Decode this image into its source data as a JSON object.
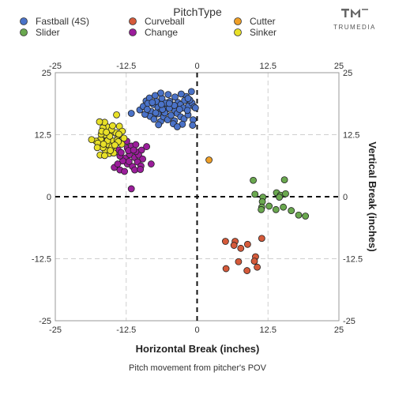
{
  "brand": {
    "name": "TRUMEDIA"
  },
  "chart_data": {
    "type": "scatter",
    "legend_title": "PitchType",
    "legend_position": "top",
    "xlabel": "Horizontal Break (inches)",
    "ylabel": "Vertical Break (inches)",
    "caption": "Pitch movement from pitcher's POV",
    "xlim": [
      -25,
      25
    ],
    "ylim": [
      -25,
      25
    ],
    "x_ticks": [
      -25,
      -12.5,
      0,
      12.5,
      25
    ],
    "y_ticks": [
      -25,
      -12.5,
      0,
      12.5,
      25
    ],
    "x_tick_labels": [
      "-25",
      "-12.5",
      "0",
      "12.5",
      "25"
    ],
    "y_tick_labels": [
      "-25",
      "-12.5",
      "0",
      "12.5",
      "25"
    ],
    "grid": true,
    "zero_lines": "dashed",
    "series": [
      {
        "name": "Fastball (4S)",
        "color": "#4a72c8",
        "points": [
          [
            -10.1,
            17.5
          ],
          [
            -9.5,
            18.2
          ],
          [
            -9.0,
            19.3
          ],
          [
            -8.4,
            19.9
          ],
          [
            -8.1,
            17.2
          ],
          [
            -7.7,
            18.6
          ],
          [
            -7.2,
            19.2
          ],
          [
            -6.9,
            18.0
          ],
          [
            -6.6,
            17.0
          ],
          [
            -6.2,
            19.8
          ],
          [
            -5.8,
            18.4
          ],
          [
            -5.3,
            17.7
          ],
          [
            -4.8,
            19.2
          ],
          [
            -4.4,
            18.1
          ],
          [
            -3.9,
            17.3
          ],
          [
            -3.4,
            19.0
          ],
          [
            -2.9,
            18.6
          ],
          [
            -2.4,
            17.9
          ],
          [
            -1.9,
            20.2
          ],
          [
            -1.5,
            18.3
          ],
          [
            -0.9,
            18.9
          ],
          [
            -0.5,
            18.1
          ],
          [
            -1.0,
            21.2
          ],
          [
            -1.3,
            19.5
          ],
          [
            -8.3,
            16.2
          ],
          [
            -7.6,
            15.6
          ],
          [
            -6.9,
            16.7
          ],
          [
            -6.4,
            15.2
          ],
          [
            -5.9,
            16.1
          ],
          [
            -5.2,
            15.5
          ],
          [
            -4.6,
            16.4
          ],
          [
            -4.0,
            15.3
          ],
          [
            -3.5,
            16.8
          ],
          [
            -2.9,
            16.1
          ],
          [
            -2.3,
            15.7
          ],
          [
            -1.6,
            16.5
          ],
          [
            -0.7,
            15.5
          ],
          [
            -7.4,
            20.4
          ],
          [
            -6.4,
            20.9
          ],
          [
            -5.1,
            20.6
          ],
          [
            -3.9,
            20.1
          ],
          [
            -2.8,
            20.7
          ],
          [
            -2.2,
            19.4
          ],
          [
            -9.2,
            16.6
          ],
          [
            -4.2,
            14.7
          ],
          [
            -6.8,
            14.5
          ],
          [
            -2.6,
            14.6
          ],
          [
            -1.7,
            17.4
          ],
          [
            -5.5,
            18.9
          ],
          [
            -8.7,
            18.8
          ],
          [
            -7.3,
            16.9
          ],
          [
            -4.9,
            17.8
          ],
          [
            -3.1,
            17.6
          ],
          [
            -5.7,
            16.9
          ],
          [
            -0.3,
            17.9
          ],
          [
            -6.1,
            17.6
          ],
          [
            -8.8,
            17.6
          ],
          [
            -4.0,
            18.4
          ],
          [
            -7.9,
            19.0
          ],
          [
            -11.6,
            16.8
          ],
          [
            -6.3,
            18.6
          ],
          [
            -1.6,
            19.8
          ],
          [
            -4.9,
            18.8
          ],
          [
            -3.5,
            14.1
          ],
          [
            -0.8,
            14.4
          ]
        ]
      },
      {
        "name": "Curveball",
        "color": "#d55a3a",
        "points": [
          [
            5.0,
            -9.0
          ],
          [
            6.7,
            -9.0
          ],
          [
            6.5,
            -9.8
          ],
          [
            7.7,
            -10.4
          ],
          [
            8.9,
            -9.6
          ],
          [
            11.4,
            -8.4
          ],
          [
            10.3,
            -12.1
          ],
          [
            7.3,
            -13.1
          ],
          [
            5.1,
            -14.5
          ],
          [
            8.8,
            -14.9
          ],
          [
            10.6,
            -14.2
          ],
          [
            10.1,
            -13.0
          ]
        ]
      },
      {
        "name": "Cutter",
        "color": "#ef9f27",
        "points": [
          [
            2.1,
            7.4
          ]
        ]
      },
      {
        "name": "Slider",
        "color": "#6aa84f",
        "points": [
          [
            9.9,
            3.3
          ],
          [
            15.4,
            3.4
          ],
          [
            10.2,
            0.5
          ],
          [
            14.0,
            0.8
          ],
          [
            14.7,
            0.3
          ],
          [
            15.6,
            0.6
          ],
          [
            14.5,
            -0.1
          ],
          [
            11.6,
            -0.1
          ],
          [
            11.5,
            -1.0
          ],
          [
            11.4,
            -2.1
          ],
          [
            12.7,
            -1.9
          ],
          [
            15.2,
            -2.1
          ],
          [
            13.9,
            -2.6
          ],
          [
            11.3,
            -2.6
          ],
          [
            16.6,
            -2.8
          ],
          [
            17.9,
            -3.7
          ],
          [
            19.1,
            -3.9
          ]
        ]
      },
      {
        "name": "Change",
        "color": "#9b1d9b",
        "points": [
          [
            -14.8,
            10.3
          ],
          [
            -13.9,
            9.4
          ],
          [
            -13.1,
            10.9
          ],
          [
            -12.3,
            9.8
          ],
          [
            -11.6,
            10.2
          ],
          [
            -10.8,
            10.5
          ],
          [
            -9.8,
            9.4
          ],
          [
            -8.9,
            10.1
          ],
          [
            -12.6,
            7.8
          ],
          [
            -11.9,
            8.5
          ],
          [
            -11.0,
            7.9
          ],
          [
            -10.3,
            8.4
          ],
          [
            -9.6,
            7.6
          ],
          [
            -12.3,
            6.6
          ],
          [
            -11.4,
            6.1
          ],
          [
            -10.5,
            7.0
          ],
          [
            -9.9,
            6.2
          ],
          [
            -13.1,
            7.2
          ],
          [
            -13.6,
            8.2
          ],
          [
            -14.6,
            5.9
          ],
          [
            -13.6,
            5.4
          ],
          [
            -12.8,
            5.1
          ],
          [
            -11.0,
            5.4
          ],
          [
            -10.0,
            5.5
          ],
          [
            -8.1,
            6.6
          ],
          [
            -11.6,
            1.6
          ],
          [
            -12.1,
            9.3
          ],
          [
            -14.0,
            6.6
          ],
          [
            -10.8,
            9.1
          ],
          [
            -12.0,
            7.1
          ],
          [
            -11.2,
            9.4
          ],
          [
            -13.4,
            8.9
          ],
          [
            -12.4,
            11.2
          ]
        ]
      },
      {
        "name": "Sinker",
        "color": "#e8e028",
        "points": [
          [
            -14.2,
            16.5
          ],
          [
            -13.7,
            14.2
          ],
          [
            -13.2,
            13.2
          ],
          [
            -14.0,
            12.3
          ],
          [
            -14.8,
            11.2
          ],
          [
            -15.2,
            12.8
          ],
          [
            -15.9,
            14.1
          ],
          [
            -16.2,
            12.5
          ],
          [
            -16.4,
            11.1
          ],
          [
            -16.9,
            10.3
          ],
          [
            -17.0,
            11.6
          ],
          [
            -17.8,
            11.2
          ],
          [
            -16.6,
            13.9
          ],
          [
            -16.3,
            15.0
          ],
          [
            -16.9,
            12.6
          ],
          [
            -17.5,
            10.8
          ],
          [
            -15.6,
            10.5
          ],
          [
            -14.8,
            9.7
          ],
          [
            -15.5,
            8.7
          ],
          [
            -16.2,
            9.4
          ],
          [
            -16.6,
            9.9
          ],
          [
            -17.1,
            8.4
          ],
          [
            -14.3,
            12.9
          ],
          [
            -15.1,
            13.5
          ],
          [
            -14.1,
            11.4
          ],
          [
            -15.8,
            11.3
          ],
          [
            -13.3,
            10.6
          ],
          [
            -12.9,
            11.8
          ],
          [
            -14.7,
            8.8
          ],
          [
            -16.8,
            13.2
          ],
          [
            -15.0,
            10.1
          ],
          [
            -13.9,
            11.1
          ],
          [
            -16.3,
            8.3
          ],
          [
            -18.6,
            11.5
          ],
          [
            -17.6,
            9.9
          ],
          [
            -15.4,
            12.2
          ],
          [
            -14.9,
            14.3
          ],
          [
            -13.8,
            12.6
          ],
          [
            -16.0,
            13.0
          ],
          [
            -17.2,
            15.1
          ],
          [
            -14.5,
            10.4
          ],
          [
            -15.3,
            9.3
          ],
          [
            -16.5,
            10.6
          ]
        ]
      }
    ]
  }
}
